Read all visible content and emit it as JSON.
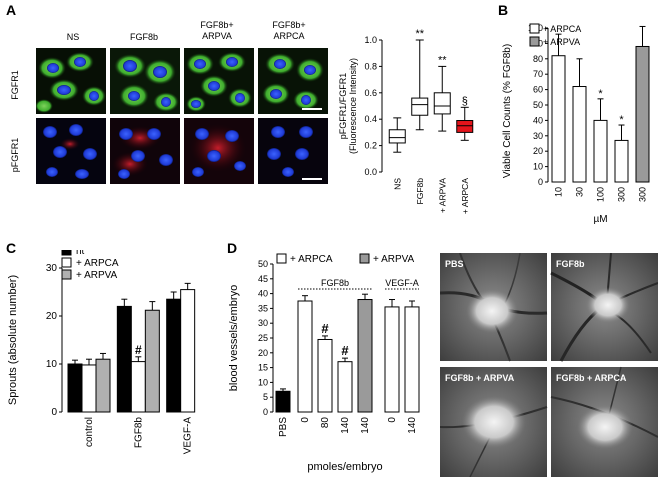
{
  "panels": {
    "A": {
      "letter": "A",
      "columns": [
        "NS",
        "FGF8b",
        "FGF8b+\nARPVA",
        "FGF8b+\nARPCA"
      ],
      "row_labels": [
        "FGFR1",
        "pFGFR1"
      ],
      "colors": {
        "green_stain": "#3fae2e",
        "blue_nuclei": "#1f3bd6",
        "red_stain": "#c0162b"
      }
    },
    "B": {
      "letter": "B"
    },
    "C": {
      "letter": "C"
    },
    "D": {
      "letter": "D"
    },
    "E": {
      "photo_labels": [
        "PBS",
        "FGF8b",
        "FGF8b + ARPVA",
        "FGF8b + ARPCA"
      ]
    }
  },
  "chart_data": [
    {
      "id": "A-box",
      "type": "box",
      "ylabel": "pFGFR1/FGFR1\n(Fluorescence Intensity)",
      "ylim": [
        0,
        1.0
      ],
      "yticks": [
        "0.0",
        "0.2",
        "0.4",
        "0.6",
        "0.8",
        "1.0"
      ],
      "categories": [
        "NS",
        "FGF8b",
        "+ ARPVA",
        "+ ARPCA"
      ],
      "boxes": [
        {
          "min": 0.15,
          "q1": 0.22,
          "median": 0.26,
          "q3": 0.32,
          "max": 0.41,
          "color": "#ffffff",
          "annotation": ""
        },
        {
          "min": 0.32,
          "q1": 0.43,
          "median": 0.51,
          "q3": 0.56,
          "max": 1.0,
          "color": "#ffffff",
          "annotation": "**"
        },
        {
          "min": 0.31,
          "q1": 0.44,
          "median": 0.5,
          "q3": 0.6,
          "max": 0.8,
          "color": "#ffffff",
          "annotation": "**"
        },
        {
          "min": 0.24,
          "q1": 0.3,
          "median": 0.35,
          "q3": 0.39,
          "max": 0.49,
          "color": "#e3141b",
          "annotation": "§"
        }
      ]
    },
    {
      "id": "B-bar",
      "type": "bar",
      "ylabel": "Viable Cell Counts (% FGF8b)",
      "xlabel": "µM",
      "ylim": [
        0,
        100
      ],
      "yticks": [
        "0",
        "10",
        "20",
        "30",
        "40",
        "50",
        "60",
        "70",
        "80",
        "90",
        "100"
      ],
      "categories": [
        "10",
        "30",
        "100",
        "300",
        "300"
      ],
      "legend": [
        "+ ARPCA",
        "+ ARPVA"
      ],
      "bars": [
        {
          "value": 82,
          "err": 14,
          "series": "ARPCA",
          "annotation": ""
        },
        {
          "value": 62,
          "err": 18,
          "series": "ARPCA",
          "annotation": ""
        },
        {
          "value": 40,
          "err": 14,
          "series": "ARPCA",
          "annotation": "*"
        },
        {
          "value": 27,
          "err": 10,
          "series": "ARPCA",
          "annotation": "*"
        },
        {
          "value": 88,
          "err": 13,
          "series": "ARPVA",
          "annotation": ""
        }
      ]
    },
    {
      "id": "C-bar",
      "type": "bar",
      "ylabel": "Sprouts (absolute number)",
      "ylim": [
        0,
        30
      ],
      "yticks": [
        "0",
        "10",
        "20",
        "30"
      ],
      "categories": [
        "control",
        "FGF8b",
        "VEGF-A"
      ],
      "legend": [
        "nt",
        "+ ARPCA",
        "+ ARPVA"
      ],
      "series": [
        {
          "name": "nt",
          "values": [
            10,
            22,
            23.5
          ],
          "errors": [
            0.8,
            1.5,
            1.5
          ]
        },
        {
          "name": "+ ARPCA",
          "values": [
            9.8,
            10.5,
            25.5
          ],
          "errors": [
            1.2,
            1.0,
            1.3
          ]
        },
        {
          "name": "+ ARPVA",
          "values": [
            11,
            21.2,
            null
          ],
          "errors": [
            1.2,
            1.8,
            null
          ]
        }
      ],
      "annotations": [
        {
          "category": "FGF8b",
          "series": "+ ARPCA",
          "text": "#"
        }
      ]
    },
    {
      "id": "D-bar",
      "type": "bar",
      "ylabel": "blood vessels/embryo",
      "xlabel": "pmoles/embryo",
      "ylim": [
        0,
        50
      ],
      "yticks": [
        "0",
        "5",
        "10",
        "15",
        "20",
        "25",
        "30",
        "35",
        "40",
        "45",
        "50"
      ],
      "legend": [
        "+ ARPCA",
        "+ ARPVA"
      ],
      "group_labels": [
        "FGF8b",
        "VEGF-A"
      ],
      "categories": [
        "PBS",
        "0",
        "80",
        "140",
        "140",
        "0",
        "140"
      ],
      "bars": [
        {
          "value": 7,
          "err": 0.8,
          "style": "black",
          "annotation": ""
        },
        {
          "value": 37.5,
          "err": 1.8,
          "style": "white",
          "annotation": ""
        },
        {
          "value": 24.5,
          "err": 1.2,
          "style": "white",
          "annotation": "#"
        },
        {
          "value": 17,
          "err": 1.2,
          "style": "white",
          "annotation": "#"
        },
        {
          "value": 38,
          "err": 1.8,
          "style": "gray",
          "annotation": ""
        },
        {
          "value": 35.5,
          "err": 2.5,
          "style": "white",
          "annotation": ""
        },
        {
          "value": 35.5,
          "err": 2.0,
          "style": "white",
          "annotation": ""
        }
      ]
    }
  ]
}
